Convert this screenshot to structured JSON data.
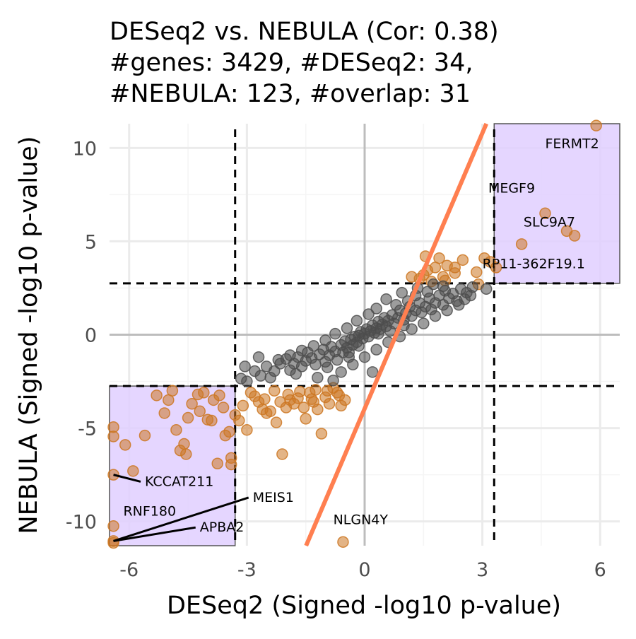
{
  "chart_data": {
    "type": "scatter",
    "title_lines": [
      "DESeq2 vs. NEBULA (Cor: 0.38)",
      "#genes: 3429, #DESeq2: 34,",
      "#NEBULA: 123, #overlap: 31"
    ],
    "xlabel": "DESeq2 (Signed -log10 p-value)",
    "ylabel": "NEBULA (Signed -log10 p-value)",
    "xlim": [
      -6.5,
      6.5
    ],
    "ylim": [
      -11.3,
      11.3
    ],
    "x_ticks": [
      {
        "value": -6,
        "label": "-6"
      },
      {
        "value": -3,
        "label": "-3"
      },
      {
        "value": 0,
        "label": "0"
      },
      {
        "value": 3,
        "label": "3"
      },
      {
        "value": 6,
        "label": "6"
      }
    ],
    "y_ticks": [
      {
        "value": -10,
        "label": "-10"
      },
      {
        "value": -5,
        "label": "-5"
      },
      {
        "value": 0,
        "label": "0"
      },
      {
        "value": 5,
        "label": "5"
      },
      {
        "value": 10,
        "label": "10"
      }
    ],
    "grid": true,
    "thresholds": {
      "x": [
        -3.3,
        3.3
      ],
      "y": [
        -2.75,
        2.75
      ]
    },
    "fit_line": {
      "slope": 4.92,
      "intercept": -3.96,
      "color": "#FF7F50"
    },
    "highlight_regions": [
      {
        "x": [
          -6.5,
          -3.3
        ],
        "y": [
          -11.3,
          -2.75
        ]
      },
      {
        "x": [
          3.3,
          6.5
        ],
        "y": [
          2.75,
          11.3
        ]
      }
    ],
    "colors": {
      "background_points": "#4D4D4D",
      "significant_points": "#CC7722",
      "region_fill": "#E0CFFF",
      "region_stroke": "#555555",
      "threshold_line": "#000000",
      "grid_major": "#EBEBEB",
      "zero_line": "#BDBDBD"
    },
    "series": [
      {
        "color_key": "significant_points",
        "points": [
          [
            5.9,
            11.2
          ],
          [
            4.6,
            6.5
          ],
          [
            5.15,
            5.55
          ],
          [
            5.35,
            5.3
          ],
          [
            4.0,
            4.85
          ],
          [
            3.05,
            4.1
          ],
          [
            3.2,
            3.9
          ],
          [
            3.35,
            3.6
          ],
          [
            2.85,
            3.35
          ],
          [
            2.9,
            2.7
          ],
          [
            1.55,
            4.2
          ],
          [
            1.4,
            3.0
          ],
          [
            1.6,
            3.45
          ],
          [
            2.0,
            3.1
          ],
          [
            2.1,
            3.7
          ],
          [
            2.5,
            4.0
          ],
          [
            2.3,
            3.6
          ],
          [
            1.8,
            3.6
          ],
          [
            1.5,
            3.2
          ],
          [
            1.7,
            2.85
          ],
          [
            1.2,
            3.1
          ],
          [
            1.9,
            4.1
          ],
          [
            2.3,
            3.3
          ],
          [
            2.05,
            2.9
          ],
          [
            -6.4,
            -4.95
          ],
          [
            -6.4,
            -5.45
          ],
          [
            -6.4,
            -7.5
          ],
          [
            -6.4,
            -10.25
          ],
          [
            -6.4,
            -11.05
          ],
          [
            -6.1,
            -5.9
          ],
          [
            -5.9,
            -7.3
          ],
          [
            -5.6,
            -5.4
          ],
          [
            -5.3,
            -3.25
          ],
          [
            -5.1,
            -4.2
          ],
          [
            -4.9,
            -3.0
          ],
          [
            -4.8,
            -5.1
          ],
          [
            -4.7,
            -6.2
          ],
          [
            -4.6,
            -5.85
          ],
          [
            -4.5,
            -4.45
          ],
          [
            -4.4,
            -3.7
          ],
          [
            -4.2,
            -4.1
          ],
          [
            -4.1,
            -3.1
          ],
          [
            -4.0,
            -4.55
          ],
          [
            -3.9,
            -4.6
          ],
          [
            -3.75,
            -6.9
          ],
          [
            -3.7,
            -3.25
          ],
          [
            -3.6,
            -3.9
          ],
          [
            -3.55,
            -5.4
          ],
          [
            -3.45,
            -5.2
          ],
          [
            -3.4,
            -6.6
          ],
          [
            -3.4,
            -6.95
          ],
          [
            -3.3,
            -4.3
          ],
          [
            -3.2,
            -4.6
          ],
          [
            -3.0,
            -5.1
          ],
          [
            -2.8,
            -3.3
          ],
          [
            -2.6,
            -4.0
          ],
          [
            -2.5,
            -4.2
          ],
          [
            -2.4,
            -4.1
          ],
          [
            -2.25,
            -4.7
          ],
          [
            -2.1,
            -6.4
          ],
          [
            -2.0,
            -3.9
          ],
          [
            -1.9,
            -3.5
          ],
          [
            -1.8,
            -3.7
          ],
          [
            -1.7,
            -3.4
          ],
          [
            -1.55,
            -3.9
          ],
          [
            -1.5,
            -4.5
          ],
          [
            -1.4,
            -3.1
          ],
          [
            -1.3,
            -3.6
          ],
          [
            -1.2,
            -4.0
          ],
          [
            -1.1,
            -5.3
          ],
          [
            -1.0,
            -3.35
          ],
          [
            -0.95,
            -3.0
          ],
          [
            -0.9,
            -3.7
          ],
          [
            -0.8,
            -2.85
          ],
          [
            -0.7,
            -3.1
          ],
          [
            -0.6,
            -3.8
          ],
          [
            -0.5,
            -3.5
          ],
          [
            -3.1,
            -3.8
          ],
          [
            -2.9,
            -3.1
          ],
          [
            -2.7,
            -3.6
          ],
          [
            -2.3,
            -3.0
          ],
          [
            -2.15,
            -3.6
          ],
          [
            -1.65,
            -3.05
          ],
          [
            -1.35,
            -3.45
          ],
          [
            -0.55,
            -11.1
          ],
          [
            -6.4,
            -11.15
          ],
          [
            -4.55,
            -6.4
          ],
          [
            -5.0,
            -3.5
          ],
          [
            -4.25,
            -3.2
          ],
          [
            -3.85,
            -3.5
          ],
          [
            -1.95,
            -3.2
          ],
          [
            -2.55,
            -3.45
          ],
          [
            -1.25,
            -2.95
          ],
          [
            -0.65,
            -3.25
          ]
        ]
      },
      {
        "color_key": "background_points",
        "points": [
          [
            -3.15,
            -2.35
          ],
          [
            -3.0,
            -2.5
          ],
          [
            -2.65,
            -2.2
          ],
          [
            -2.3,
            -1.95
          ],
          [
            -2.15,
            -1.55
          ],
          [
            -2.0,
            -1.3
          ],
          [
            -1.9,
            -1.9
          ],
          [
            -1.8,
            -1.55
          ],
          [
            -1.7,
            -1.2
          ],
          [
            -1.6,
            -1.7
          ],
          [
            -1.5,
            -1.4
          ],
          [
            -1.45,
            -0.95
          ],
          [
            -1.35,
            -1.25
          ],
          [
            -1.25,
            -1.6
          ],
          [
            -1.15,
            -1.05
          ],
          [
            -1.05,
            -0.8
          ],
          [
            -1.0,
            -1.45
          ],
          [
            -0.9,
            -1.1
          ],
          [
            -0.85,
            -0.65
          ],
          [
            -0.75,
            -0.9
          ],
          [
            -0.7,
            -1.35
          ],
          [
            -0.6,
            -0.55
          ],
          [
            -0.55,
            -0.95
          ],
          [
            -0.5,
            -0.35
          ],
          [
            -0.45,
            -0.7
          ],
          [
            -0.4,
            -1.2
          ],
          [
            -0.35,
            -0.25
          ],
          [
            -0.3,
            -0.55
          ],
          [
            -0.25,
            -0.1
          ],
          [
            -0.2,
            -0.4
          ],
          [
            -0.15,
            -0.05
          ],
          [
            -0.1,
            0.15
          ],
          [
            -0.05,
            -0.2
          ],
          [
            0.0,
            0.05
          ],
          [
            0.05,
            0.3
          ],
          [
            0.1,
            -0.1
          ],
          [
            0.15,
            0.2
          ],
          [
            0.2,
            0.5
          ],
          [
            0.25,
            0.1
          ],
          [
            0.3,
            0.35
          ],
          [
            0.35,
            0.7
          ],
          [
            0.4,
            0.3
          ],
          [
            0.45,
            0.55
          ],
          [
            0.5,
            0.9
          ],
          [
            0.55,
            0.45
          ],
          [
            0.6,
            0.75
          ],
          [
            0.7,
            1.05
          ],
          [
            0.75,
            0.6
          ],
          [
            0.85,
            0.9
          ],
          [
            0.9,
            1.3
          ],
          [
            1.0,
            0.8
          ],
          [
            1.05,
            1.15
          ],
          [
            1.15,
            1.5
          ],
          [
            1.2,
            1.0
          ],
          [
            1.3,
            1.3
          ],
          [
            1.4,
            1.7
          ],
          [
            1.45,
            1.2
          ],
          [
            1.55,
            1.5
          ],
          [
            1.65,
            1.95
          ],
          [
            1.7,
            1.35
          ],
          [
            1.8,
            1.7
          ],
          [
            1.9,
            2.1
          ],
          [
            2.0,
            1.6
          ],
          [
            2.05,
            2.35
          ],
          [
            2.15,
            1.95
          ],
          [
            2.25,
            2.2
          ],
          [
            2.35,
            1.8
          ],
          [
            2.45,
            2.45
          ],
          [
            2.6,
            2.25
          ],
          [
            2.75,
            2.55
          ],
          [
            2.0,
            2.6
          ],
          [
            1.6,
            2.3
          ],
          [
            1.3,
            2.1
          ],
          [
            1.1,
            1.8
          ],
          [
            0.8,
            1.6
          ],
          [
            0.3,
            1.4
          ],
          [
            0.1,
            1.1
          ],
          [
            -0.2,
            0.75
          ],
          [
            -0.45,
            0.35
          ],
          [
            -0.75,
            0.05
          ],
          [
            -1.0,
            -0.3
          ],
          [
            -1.3,
            -0.6
          ],
          [
            -1.6,
            -0.85
          ],
          [
            -1.9,
            -1.1
          ],
          [
            -2.2,
            -1.35
          ],
          [
            -2.5,
            -1.7
          ],
          [
            -2.8,
            -1.95
          ],
          [
            -0.6,
            -2.0
          ],
          [
            -0.3,
            -1.6
          ],
          [
            0.0,
            -1.2
          ],
          [
            0.3,
            -0.8
          ],
          [
            0.6,
            -0.4
          ],
          [
            0.9,
            -0.1
          ],
          [
            1.2,
            0.3
          ],
          [
            1.5,
            0.6
          ],
          [
            1.8,
            1.0
          ],
          [
            2.1,
            1.3
          ],
          [
            2.4,
            1.6
          ],
          [
            0.2,
            -2.0
          ],
          [
            -1.2,
            -2.3
          ],
          [
            -0.8,
            -2.45
          ],
          [
            -2.4,
            -2.3
          ],
          [
            -1.75,
            -2.1
          ],
          [
            -0.95,
            -1.75
          ],
          [
            0.55,
            1.9
          ],
          [
            0.95,
            2.25
          ],
          [
            1.35,
            2.5
          ],
          [
            1.75,
            2.7
          ],
          [
            -3.05,
            -1.7
          ],
          [
            -2.7,
            -1.2
          ],
          [
            -0.4,
            -0.95
          ],
          [
            -0.15,
            -0.6
          ],
          [
            0.35,
            0.05
          ],
          [
            0.65,
            0.2
          ],
          [
            1.0,
            0.5
          ],
          [
            2.55,
            1.9
          ],
          [
            2.7,
            2.1
          ],
          [
            3.1,
            2.45
          ]
        ]
      }
    ],
    "labels": [
      {
        "text": "FERMT2",
        "gene_xy": [
          5.9,
          11.2
        ],
        "anchor": "start",
        "text_xy": [
          4.6,
          10.0
        ],
        "leader": false
      },
      {
        "text": "MEGF9",
        "gene_xy": [
          4.6,
          6.5
        ],
        "anchor": "start",
        "text_xy": [
          3.15,
          7.6
        ],
        "leader": false
      },
      {
        "text": "SLC9A7",
        "gene_xy": [
          5.15,
          5.55
        ],
        "anchor": "start",
        "text_xy": [
          4.05,
          5.8
        ],
        "leader": false
      },
      {
        "text": "RP11-362F19.1",
        "gene_xy": [
          4.0,
          4.85
        ],
        "anchor": "start",
        "text_xy": [
          3.0,
          3.55
        ],
        "leader": false
      },
      {
        "text": "KCCAT211",
        "gene_xy": [
          -6.4,
          -7.5
        ],
        "anchor": "start",
        "text_xy": [
          -5.6,
          -8.1
        ],
        "leader": true
      },
      {
        "text": "MEIS1",
        "gene_xy": [
          -6.4,
          -11.05
        ],
        "anchor": "start",
        "text_xy": [
          -2.85,
          -8.95
        ],
        "leader": true
      },
      {
        "text": "RNF180",
        "gene_xy": [
          -6.4,
          -11.05
        ],
        "anchor": "start",
        "text_xy": [
          -6.15,
          -9.7
        ],
        "leader": false
      },
      {
        "text": "APBA2",
        "gene_xy": [
          -6.4,
          -11.05
        ],
        "anchor": "start",
        "text_xy": [
          -4.2,
          -10.55
        ],
        "leader": true
      },
      {
        "text": "NLGN4Y",
        "gene_xy": [
          -0.55,
          -11.1
        ],
        "anchor": "start",
        "text_xy": [
          -0.8,
          -10.15
        ],
        "leader": false
      }
    ]
  }
}
